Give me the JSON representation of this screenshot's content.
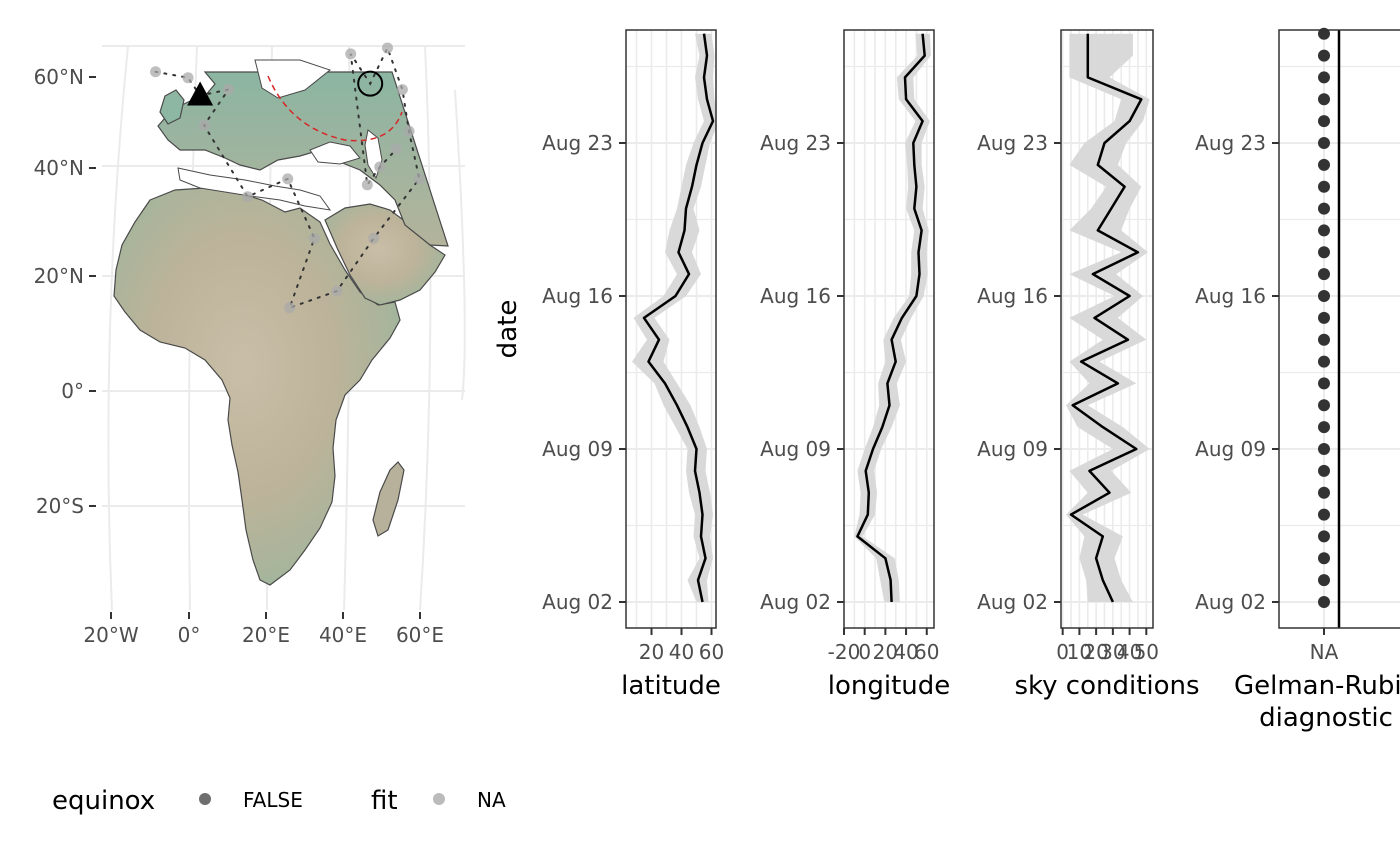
{
  "chart_data": [
    {
      "type": "map",
      "map_latitude_ticks": [
        "60°N",
        "40°N",
        "20°N",
        "0°",
        "20°S"
      ],
      "map_longitude_ticks": [
        "20°W",
        "0°",
        "20°E",
        "40°E",
        "60°E"
      ],
      "markers": [
        {
          "shape": "triangle",
          "lon": 3,
          "lat": 51
        },
        {
          "shape": "open-circle",
          "lon": 45,
          "lat": 53
        }
      ],
      "track_points": [
        {
          "lon": -8,
          "lat": 55
        },
        {
          "lon": 0,
          "lat": 54
        },
        {
          "lon": 10,
          "lat": 52
        },
        {
          "lon": 4,
          "lat": 46
        },
        {
          "lon": 15,
          "lat": 34
        },
        {
          "lon": 25,
          "lat": 37
        },
        {
          "lon": 40,
          "lat": 58
        },
        {
          "lon": 49,
          "lat": 59
        },
        {
          "lon": 53,
          "lat": 52
        },
        {
          "lon": 55,
          "lat": 45
        },
        {
          "lon": 52,
          "lat": 42
        },
        {
          "lon": 48,
          "lat": 39
        },
        {
          "lon": 45,
          "lat": 36
        },
        {
          "lon": 58,
          "lat": 37
        },
        {
          "lon": 47,
          "lat": 27
        },
        {
          "lon": 38,
          "lat": 18
        },
        {
          "lon": 32,
          "lat": 27
        },
        {
          "lon": 26,
          "lat": 15
        }
      ],
      "track_path": [
        [
          -8,
          55
        ],
        [
          0,
          54
        ],
        [
          3,
          51
        ],
        [
          10,
          52
        ],
        [
          4,
          46
        ],
        [
          15,
          34
        ],
        [
          25,
          37
        ],
        [
          32,
          27
        ],
        [
          26,
          15
        ],
        [
          38,
          18
        ],
        [
          47,
          27
        ],
        [
          58,
          37
        ],
        [
          55,
          45
        ],
        [
          53,
          52
        ],
        [
          49,
          59
        ],
        [
          45,
          53
        ],
        [
          40,
          58
        ],
        [
          45,
          36
        ],
        [
          48,
          39
        ],
        [
          52,
          42
        ]
      ]
    },
    {
      "type": "line",
      "xlabel": "latitude",
      "ylabel": "date",
      "x_ticks": [
        "20",
        "40",
        "60"
      ],
      "y_ticks": [
        "Aug 23",
        "Aug 16",
        "Aug 09",
        "Aug 02"
      ],
      "dates": [
        "2021-08-02",
        "2021-08-03",
        "2021-08-04",
        "2021-08-05",
        "2021-08-06",
        "2021-08-07",
        "2021-08-08",
        "2021-08-09",
        "2021-08-10",
        "2021-08-11",
        "2021-08-12",
        "2021-08-13",
        "2021-08-14",
        "2021-08-15",
        "2021-08-16",
        "2021-08-17",
        "2021-08-18",
        "2021-08-19",
        "2021-08-20",
        "2021-08-21",
        "2021-08-22",
        "2021-08-23",
        "2021-08-24",
        "2021-08-25",
        "2021-08-26",
        "2021-08-27",
        "2021-08-28"
      ],
      "values": [
        54,
        51,
        56,
        53,
        54,
        52,
        49,
        50,
        44,
        37,
        29,
        18,
        25,
        15,
        36,
        45,
        38,
        42,
        43,
        47,
        50,
        54,
        61,
        57,
        55,
        57,
        55
      ],
      "lower": [
        50,
        44,
        52,
        48,
        49,
        45,
        43,
        44,
        36,
        28,
        22,
        7,
        17,
        8,
        28,
        37,
        29,
        32,
        37,
        40,
        43,
        48,
        55,
        51,
        49,
        52,
        49
      ],
      "upper": [
        58,
        57,
        61,
        59,
        61,
        59,
        56,
        57,
        52,
        46,
        37,
        28,
        32,
        22,
        43,
        53,
        47,
        52,
        48,
        53,
        56,
        59,
        65,
        62,
        61,
        62,
        60
      ]
    },
    {
      "type": "line",
      "xlabel": "longitude",
      "x_ticks": [
        "-20",
        "0",
        "20",
        "40",
        "60"
      ],
      "y_ticks": [
        "Aug 23",
        "Aug 16",
        "Aug 09",
        "Aug 02"
      ],
      "dates": [
        "2021-08-02",
        "2021-08-03",
        "2021-08-04",
        "2021-08-05",
        "2021-08-06",
        "2021-08-07",
        "2021-08-08",
        "2021-08-09",
        "2021-08-10",
        "2021-08-11",
        "2021-08-12",
        "2021-08-13",
        "2021-08-14",
        "2021-08-15",
        "2021-08-16",
        "2021-08-17",
        "2021-08-18",
        "2021-08-19",
        "2021-08-20",
        "2021-08-21",
        "2021-08-22",
        "2021-08-23",
        "2021-08-24",
        "2021-08-25",
        "2021-08-26",
        "2021-08-27",
        "2021-08-28"
      ],
      "values": [
        26,
        25,
        20,
        -7,
        3,
        4,
        1,
        8,
        17,
        24,
        22,
        30,
        26,
        36,
        50,
        53,
        52,
        55,
        48,
        50,
        48,
        47,
        56,
        40,
        39,
        58,
        56
      ],
      "lower": [
        19,
        15,
        11,
        -10,
        -5,
        -4,
        -7,
        0,
        8,
        14,
        13,
        20,
        18,
        28,
        43,
        45,
        45,
        48,
        40,
        42,
        41,
        39,
        49,
        33,
        31,
        51,
        49
      ],
      "upper": [
        34,
        33,
        29,
        -2,
        10,
        12,
        9,
        16,
        26,
        34,
        31,
        40,
        35,
        45,
        57,
        61,
        60,
        62,
        56,
        58,
        55,
        55,
        63,
        48,
        47,
        64,
        63
      ]
    },
    {
      "type": "line",
      "xlabel": "sky conditions",
      "x_ticks": [
        "0",
        "10",
        "20",
        "30",
        "40",
        "50"
      ],
      "y_ticks": [
        "Aug 23",
        "Aug 16",
        "Aug 09",
        "Aug 02"
      ],
      "dates": [
        "2021-08-02",
        "2021-08-03",
        "2021-08-04",
        "2021-08-05",
        "2021-08-06",
        "2021-08-07",
        "2021-08-08",
        "2021-08-09",
        "2021-08-10",
        "2021-08-11",
        "2021-08-12",
        "2021-08-13",
        "2021-08-14",
        "2021-08-15",
        "2021-08-16",
        "2021-08-17",
        "2021-08-18",
        "2021-08-19",
        "2021-08-20",
        "2021-08-21",
        "2021-08-22",
        "2021-08-23",
        "2021-08-24",
        "2021-08-25",
        "2021-08-26",
        "2021-08-27",
        "2021-08-28"
      ],
      "values": [
        30,
        24,
        20,
        24,
        5,
        28,
        16,
        44,
        24,
        6,
        33,
        11,
        39,
        19,
        40,
        18,
        45,
        21,
        29,
        37,
        21,
        25,
        40,
        47,
        15,
        15,
        15
      ],
      "lower": [
        15,
        14,
        10,
        13,
        2,
        15,
        4,
        30,
        9,
        2,
        16,
        4,
        24,
        4,
        31,
        4,
        35,
        4,
        17,
        26,
        4,
        13,
        31,
        35,
        4,
        4,
        4
      ],
      "upper": [
        42,
        35,
        31,
        36,
        12,
        41,
        29,
        52,
        36,
        15,
        44,
        22,
        50,
        33,
        48,
        32,
        51,
        35,
        40,
        47,
        33,
        38,
        48,
        52,
        28,
        42,
        42
      ]
    },
    {
      "type": "scatter",
      "xlabel_lines": [
        "Gelman-Rubin",
        "diagnostic"
      ],
      "x_ticks": [
        "NA"
      ],
      "y_ticks": [
        "Aug 23",
        "Aug 16",
        "Aug 09",
        "Aug 02"
      ],
      "dates": [
        "2021-08-02",
        "2021-08-03",
        "2021-08-04",
        "2021-08-05",
        "2021-08-06",
        "2021-08-07",
        "2021-08-08",
        "2021-08-09",
        "2021-08-10",
        "2021-08-11",
        "2021-08-12",
        "2021-08-13",
        "2021-08-14",
        "2021-08-15",
        "2021-08-16",
        "2021-08-17",
        "2021-08-18",
        "2021-08-19",
        "2021-08-20",
        "2021-08-21",
        "2021-08-22",
        "2021-08-23",
        "2021-08-24",
        "2021-08-25",
        "2021-08-26",
        "2021-08-27",
        "2021-08-28"
      ],
      "values": [
        "NA",
        "NA",
        "NA",
        "NA",
        "NA",
        "NA",
        "NA",
        "NA",
        "NA",
        "NA",
        "NA",
        "NA",
        "NA",
        "NA",
        "NA",
        "NA",
        "NA",
        "NA",
        "NA",
        "NA",
        "NA",
        "NA",
        "NA",
        "NA",
        "NA",
        "NA",
        "NA"
      ]
    }
  ],
  "legend": {
    "equinox_title": "equinox",
    "equinox_label": "FALSE",
    "fit_title": "fit",
    "fit_label": "NA"
  },
  "colors": {
    "line": "#000000",
    "ribbon": "#d9d9d9",
    "grid": "#ebebeb",
    "panel_border": "#333333",
    "point_equinox": "#555555",
    "point_fit": "#aaaaaa",
    "circle_boundary": "#d62728",
    "land_low": "#7fb3a0",
    "land_mid": "#b8b49a",
    "land_high": "#cfc0aa"
  }
}
